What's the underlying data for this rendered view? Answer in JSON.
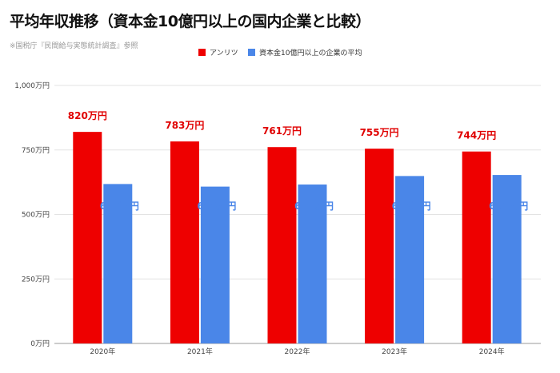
{
  "chart_data": {
    "type": "bar",
    "title": "平均年収推移（資本金10億円以上の国内企業と比較）",
    "subtitle": "※国税庁『民間給与実態統計調査』参照",
    "categories": [
      "2020年",
      "2021年",
      "2022年",
      "2023年",
      "2024年"
    ],
    "series": [
      {
        "name": "アンリツ",
        "color": "#ee0000",
        "values": [
          820,
          783,
          761,
          755,
          744
        ],
        "labels": [
          "820万円",
          "783万円",
          "761万円",
          "755万円",
          "744万円"
        ]
      },
      {
        "name": "資本金10億円以上の企業の平均",
        "color": "#4a86e8",
        "values": [
          618,
          608,
          616,
          649,
          653
        ],
        "labels": [
          "618万円",
          "608万円",
          "616万円",
          "649万円",
          "653万円"
        ]
      }
    ],
    "y_ticks": [
      {
        "value": 0,
        "label": "0万円"
      },
      {
        "value": 250,
        "label": "250万円"
      },
      {
        "value": 500,
        "label": "500万円"
      },
      {
        "value": 750,
        "label": "750万円"
      },
      {
        "value": 1000,
        "label": "1,000万円"
      }
    ],
    "ylim": [
      0,
      1000
    ],
    "grid": true,
    "legend_position": "top-center"
  }
}
